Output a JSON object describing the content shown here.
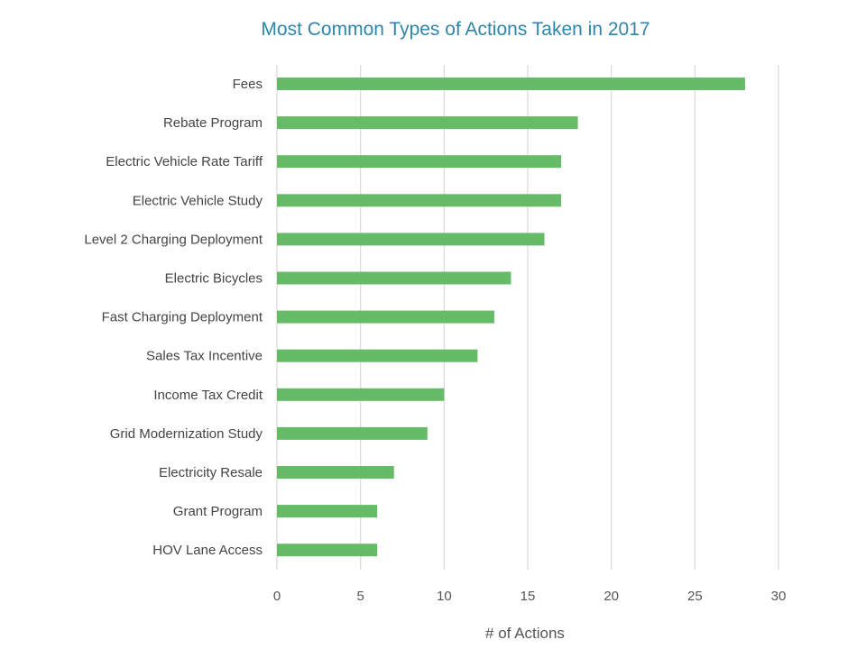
{
  "chart_data": {
    "type": "bar",
    "orientation": "horizontal",
    "title": "Most Common Types of Actions Taken in 2017",
    "xlabel": "# of Actions",
    "ylabel": "",
    "categories": [
      "Fees",
      "Rebate Program",
      "Electric Vehicle Rate Tariff",
      "Electric Vehicle Study",
      "Level 2 Charging Deployment",
      "Electric Bicycles",
      "Fast Charging Deployment",
      "Sales Tax Incentive",
      "Income Tax Credit",
      "Grid Modernization Study",
      "Electricity Resale",
      "Grant Program",
      "HOV Lane Access"
    ],
    "values": [
      28,
      18,
      17,
      17,
      16,
      14,
      13,
      12,
      10,
      9,
      7,
      6,
      6
    ],
    "xlim": [
      0,
      30
    ],
    "xticks": [
      0,
      5,
      10,
      15,
      20,
      25,
      30
    ],
    "grid": "vertical",
    "legend": "none",
    "colors": {
      "bar": "#66bb66",
      "title": "#2e86ab",
      "grid": "#d9d9d9",
      "text": "#444444"
    }
  }
}
